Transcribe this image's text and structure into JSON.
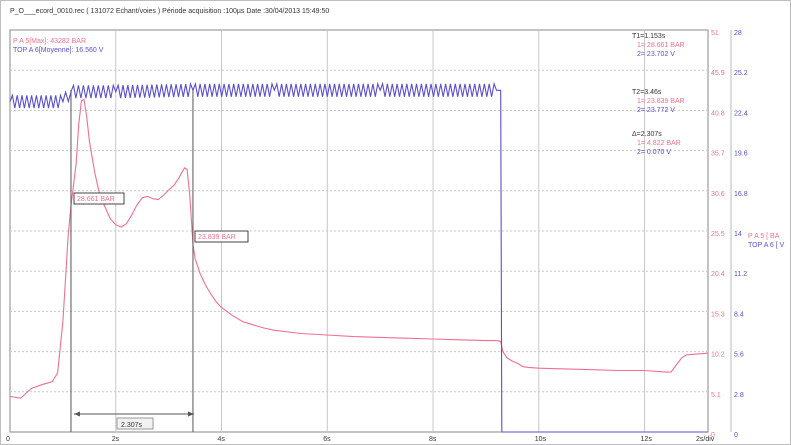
{
  "header": {
    "title": "P_O___ecord_0010.rec ( 131072 Echant/voies ) Période acquisition :100µs Date :30/04/2013 15:49:50"
  },
  "legend": {
    "ch1": "P    A 5[Max]: 43282 BAR",
    "ch2": "TOP  A 6[Moyenne]: 16.560 V"
  },
  "cursor_panel": {
    "t1": "T1=1.153s",
    "t1_v1": "1= 28.661 BAR",
    "t1_v2": "2= 23.702 V",
    "t2": "T2=3.46s",
    "t2_v1": "1= 23.839 BAR",
    "t2_v2": "2= 23.772 V",
    "delta": "Δ=2.307s",
    "d_v1": "1= 4.822 BAR",
    "d_v2": "2= 0.070 V"
  },
  "right_legend": {
    "l1": "P    A 5 [ BA",
    "l2": "TOP  A 6 [ V"
  },
  "annotations": {
    "a1": "28.661 BAR",
    "a2": "23.839 BAR",
    "delta": "2.307s"
  },
  "colors": {
    "pressure": "#f07090",
    "top": "#5a4fd0",
    "grid": "#c8c8c8",
    "cursor": "#555555",
    "axis_left": "#f07090",
    "axis_right": "#5a4fd0"
  },
  "chart_data": {
    "type": "line",
    "x_unit": "s",
    "xlim": [
      0,
      13.2
    ],
    "x_ticks": [
      {
        "v": 0,
        "label": "0"
      },
      {
        "v": 2,
        "label": "2s"
      },
      {
        "v": 4,
        "label": "4s"
      },
      {
        "v": 6,
        "label": "6s"
      },
      {
        "v": 8,
        "label": "8s"
      },
      {
        "v": 10,
        "label": "10s"
      },
      {
        "v": 12,
        "label": "12s"
      },
      {
        "v": 13.2,
        "label": "2s/div"
      }
    ],
    "y_left_ticks": [
      "51",
      "45.9",
      "40.8",
      "35.7",
      "30.6",
      "25.5",
      "20.4",
      "15.3",
      "10.2",
      "5.1",
      "0"
    ],
    "y_right_ticks": [
      "28",
      "25.2",
      "22.4",
      "19.6",
      "16.8",
      "14",
      "11.2",
      "8.4",
      "5.6",
      "2.8",
      "0"
    ],
    "ylim_left": [
      0,
      51
    ],
    "ylim_right": [
      0,
      28
    ],
    "cursors": [
      1.153,
      3.46
    ],
    "series": [
      {
        "name": "P    A 5",
        "axis": "left",
        "points": [
          [
            0,
            4.5
          ],
          [
            0.2,
            4.3
          ],
          [
            0.4,
            5.5
          ],
          [
            0.6,
            6.0
          ],
          [
            0.8,
            6.4
          ],
          [
            0.9,
            7.5
          ],
          [
            1.0,
            14
          ],
          [
            1.1,
            25
          ],
          [
            1.153,
            28.7
          ],
          [
            1.25,
            34
          ],
          [
            1.3,
            39
          ],
          [
            1.35,
            42
          ],
          [
            1.4,
            42.2
          ],
          [
            1.45,
            40
          ],
          [
            1.5,
            37
          ],
          [
            1.6,
            33
          ],
          [
            1.7,
            30
          ],
          [
            1.8,
            28.5
          ],
          [
            1.9,
            27
          ],
          [
            2.0,
            26.3
          ],
          [
            2.1,
            26.0
          ],
          [
            2.2,
            26.4
          ],
          [
            2.3,
            27.5
          ],
          [
            2.4,
            28.8
          ],
          [
            2.5,
            29.7
          ],
          [
            2.6,
            29.9
          ],
          [
            2.7,
            29.6
          ],
          [
            2.8,
            29.5
          ],
          [
            2.9,
            30.0
          ],
          [
            3.0,
            30.7
          ],
          [
            3.1,
            31.3
          ],
          [
            3.2,
            32.3
          ],
          [
            3.3,
            33.5
          ],
          [
            3.35,
            33.3
          ],
          [
            3.4,
            30.0
          ],
          [
            3.46,
            23.8
          ],
          [
            3.5,
            22.0
          ],
          [
            3.6,
            20.0
          ],
          [
            3.7,
            18.6
          ],
          [
            3.8,
            17.5
          ],
          [
            3.9,
            16.5
          ],
          [
            4.0,
            15.8
          ],
          [
            4.2,
            14.8
          ],
          [
            4.4,
            14.0
          ],
          [
            4.6,
            13.6
          ],
          [
            4.8,
            13.2
          ],
          [
            5.0,
            12.9
          ],
          [
            5.5,
            12.5
          ],
          [
            6.0,
            12.3
          ],
          [
            6.5,
            12.1
          ],
          [
            7.0,
            12.0
          ],
          [
            7.5,
            11.9
          ],
          [
            8.0,
            11.8
          ],
          [
            8.5,
            11.7
          ],
          [
            9.0,
            11.6
          ],
          [
            9.2,
            11.6
          ],
          [
            9.28,
            11.5
          ],
          [
            9.32,
            10.2
          ],
          [
            9.4,
            9.4
          ],
          [
            9.5,
            9.0
          ],
          [
            9.6,
            8.7
          ],
          [
            9.7,
            8.3
          ],
          [
            9.8,
            8.2
          ],
          [
            10.0,
            8.1
          ],
          [
            10.5,
            8.0
          ],
          [
            11.0,
            7.9
          ],
          [
            11.5,
            7.8
          ],
          [
            12.0,
            7.8
          ],
          [
            12.4,
            7.6
          ],
          [
            12.5,
            7.6
          ],
          [
            12.6,
            8.5
          ],
          [
            12.7,
            9.4
          ],
          [
            12.8,
            9.8
          ],
          [
            13.2,
            10.0
          ]
        ]
      },
      {
        "name": "TOP  A 6",
        "axis": "right",
        "points": [
          [
            0,
            23.0
          ],
          [
            1.0,
            23.0
          ],
          [
            1.153,
            23.7
          ],
          [
            2.0,
            23.7
          ],
          [
            3.46,
            23.8
          ],
          [
            5.0,
            23.8
          ],
          [
            7.0,
            23.8
          ],
          [
            9.2,
            23.8
          ],
          [
            9.28,
            23.8
          ],
          [
            9.3,
            0.0
          ],
          [
            13.2,
            0.0
          ]
        ]
      }
    ]
  }
}
